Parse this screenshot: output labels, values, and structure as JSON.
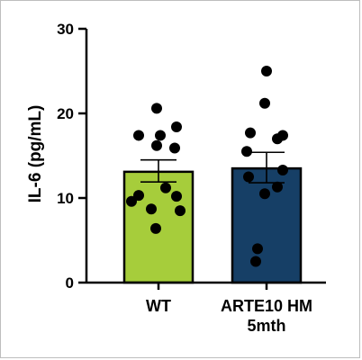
{
  "chart_data": {
    "type": "bar",
    "ylabel": "IL-6 (pg/mL)",
    "ylim": [
      0,
      30
    ],
    "yticks": [
      0,
      10,
      20,
      30
    ],
    "grid": false,
    "categories": [
      "WT",
      "ARTE10 HM 5mth"
    ],
    "category_lines": [
      [
        "WT"
      ],
      [
        "ARTE10 HM",
        "5mth"
      ]
    ],
    "bar_colors": [
      "#a6cd3b",
      "#163f66"
    ],
    "values": [
      13.1,
      13.5
    ],
    "errors": [
      {
        "low": 11.9,
        "high": 14.5
      },
      {
        "low": 11.8,
        "high": 15.4
      }
    ],
    "points": [
      [
        20.6,
        18.4,
        17.4,
        17.4,
        16.2,
        15.9,
        11.2,
        10.3,
        10.2,
        9.6,
        8.7,
        8.5,
        6.4
      ],
      [
        25.0,
        21.2,
        17.7,
        17.4,
        17.0,
        15.5,
        13.3,
        12.5,
        11.3,
        10.5,
        4.0,
        2.5
      ]
    ]
  }
}
